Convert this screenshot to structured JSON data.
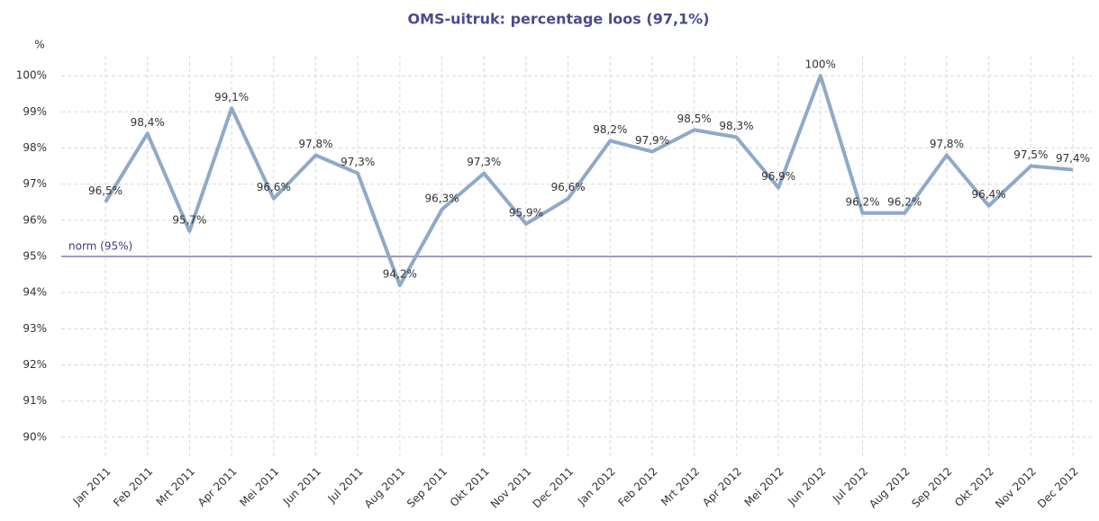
{
  "chart_data": {
    "type": "line",
    "title": "OMS-uitruk: percentage loos (97,1%)",
    "y_label": "%",
    "categories": [
      "Jan 2011",
      "Feb 2011",
      "Mrt 2011",
      "Apr 2011",
      "Mei 2011",
      "Jun 2011",
      "Jul 2011",
      "Aug 2011",
      "Sep 2011",
      "Okt 2011",
      "Nov 2011",
      "Dec 2011",
      "Jan 2012",
      "Feb 2012",
      "Mrt 2012",
      "Apr 2012",
      "Mei 2012",
      "Jun 2012",
      "Jul 2012",
      "Aug 2012",
      "Sep 2012",
      "Okt 2012",
      "Nov 2012",
      "Dec 2012"
    ],
    "values": [
      96.5,
      98.4,
      95.7,
      99.1,
      96.6,
      97.8,
      97.3,
      94.2,
      96.3,
      97.3,
      95.9,
      96.6,
      98.2,
      97.9,
      98.5,
      98.3,
      96.9,
      100,
      96.2,
      96.2,
      97.8,
      96.4,
      97.5,
      97.4
    ],
    "value_labels": [
      "96,5%",
      "98,4%",
      "95,7%",
      "99,1%",
      "96,6%",
      "97,8%",
      "97,3%",
      "94,2%",
      "96,3%",
      "97,3%",
      "95,9%",
      "96,6%",
      "98,2%",
      "97,9%",
      "98,5%",
      "98,3%",
      "96,9%",
      "100%",
      "96,2%",
      "96,2%",
      "97,8%",
      "96,4%",
      "97,5%",
      "97,4%"
    ],
    "color": "#8fa9c9",
    "ylim": [
      89.4,
      100.55
    ],
    "yticks": [
      {
        "value": 90,
        "label": "90%"
      },
      {
        "value": 91,
        "label": "91%"
      },
      {
        "value": 92,
        "label": "92%"
      },
      {
        "value": 93,
        "label": "93%"
      },
      {
        "value": 94,
        "label": "94%"
      },
      {
        "value": 95,
        "label": "95%"
      },
      {
        "value": 96,
        "label": "96%"
      },
      {
        "value": 97,
        "label": "97%"
      },
      {
        "value": 98,
        "label": "98%"
      },
      {
        "value": 99,
        "label": "99%"
      },
      {
        "value": 100,
        "label": "100%"
      }
    ],
    "grid": true,
    "reference_line": {
      "value": 95,
      "label": "norm (95%)",
      "color": "#3c3c7c"
    }
  }
}
